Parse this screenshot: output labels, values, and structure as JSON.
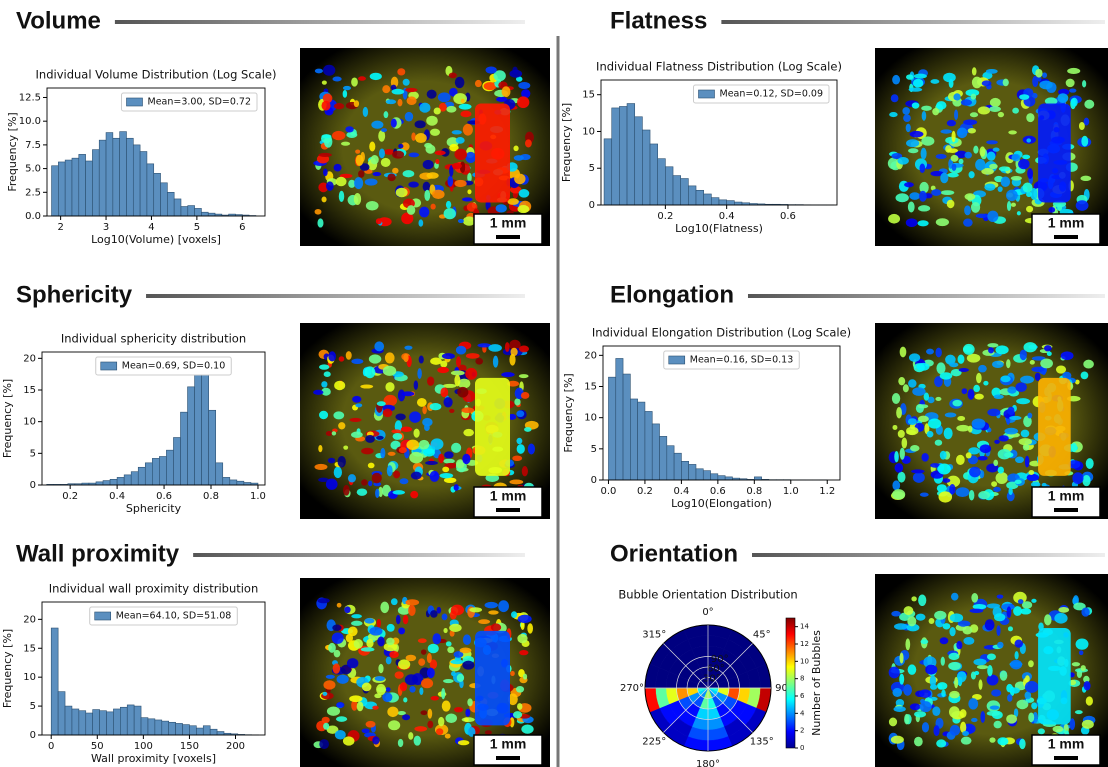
{
  "sections": [
    {
      "heading": "Volume",
      "scale_bar": "1 mm"
    },
    {
      "heading": "Flatness",
      "scale_bar": "1 mm"
    },
    {
      "heading": "Sphericity",
      "scale_bar": "1 mm"
    },
    {
      "heading": "Elongation",
      "scale_bar": "1 mm"
    },
    {
      "heading": "Wall proximity",
      "scale_bar": "1 mm"
    },
    {
      "heading": "Orientation",
      "scale_bar": "1 mm"
    }
  ],
  "chart_data": [
    {
      "type": "histogram",
      "title": "Individual Volume Distribution (Log Scale)",
      "x_label": "Log10(Volume) [voxels]",
      "y_label": "Frequency [%]",
      "bins": [
        1.8,
        1.95,
        2.1,
        2.25,
        2.4,
        2.55,
        2.7,
        2.85,
        3.0,
        3.15,
        3.3,
        3.45,
        3.6,
        3.75,
        3.9,
        4.05,
        4.2,
        4.35,
        4.5,
        4.65,
        4.8,
        4.95,
        5.1,
        5.25,
        5.4,
        5.55,
        5.7,
        5.85,
        6.0,
        6.15,
        6.3
      ],
      "series": [
        {
          "name": "Mean=3.00, SD=0.72",
          "color": "#5b8fbf",
          "values": [
            5.3,
            5.7,
            5.9,
            6.1,
            6.5,
            5.8,
            7.0,
            8.0,
            8.8,
            8.2,
            8.9,
            8.2,
            7.5,
            6.8,
            5.5,
            4.5,
            3.5,
            2.5,
            1.8,
            1.0,
            1.1,
            0.8,
            0.4,
            0.3,
            0.2,
            0.1,
            0.2,
            0.15,
            0.1,
            0.05
          ]
        }
      ],
      "xlim": [
        1.7,
        6.5
      ],
      "xticks": [
        2,
        3,
        4,
        5,
        6
      ],
      "ylim": [
        0,
        13.5
      ],
      "yticks": [
        {
          "value": 0,
          "label": "0.0"
        },
        2.5,
        {
          "value": 5,
          "label": "5.0"
        },
        7.5,
        {
          "value": 10,
          "label": "10.0"
        },
        12.5
      ],
      "legend": "upper right"
    },
    {
      "type": "histogram",
      "title": "Individual Flatness Distribution (Log Scale)",
      "x_label": "Log10(Flatness)",
      "y_label": "Frequency [%]",
      "bins": [
        0,
        0.025,
        0.05,
        0.075,
        0.1,
        0.125,
        0.15,
        0.175,
        0.2,
        0.225,
        0.25,
        0.275,
        0.3,
        0.325,
        0.35,
        0.375,
        0.4,
        0.425,
        0.45,
        0.475,
        0.5,
        0.525,
        0.55,
        0.575,
        0.6,
        0.625,
        0.65,
        0.675,
        0.7,
        0.725,
        0.75
      ],
      "series": [
        {
          "name": "Mean=0.12, SD=0.09",
          "color": "#5b8fbf",
          "values": [
            9,
            13.2,
            13.4,
            13.8,
            12,
            10.2,
            8.3,
            6.3,
            5.2,
            4.0,
            3.6,
            2.6,
            2.0,
            1.5,
            1.0,
            0.7,
            0.6,
            0.4,
            0.3,
            0.2,
            0.15,
            0.1,
            0.1,
            0.08,
            0.05,
            0.05,
            0.03,
            0.02,
            0.02,
            0.01
          ]
        }
      ],
      "xlim": [
        -0.01,
        0.76
      ],
      "xticks": [
        0.2,
        0.4,
        0.6
      ],
      "ylim": [
        0,
        17
      ],
      "yticks": [
        0,
        5,
        10,
        15
      ],
      "legend": "upper right"
    },
    {
      "type": "histogram",
      "title": "Individual sphericity distribution",
      "x_label": "Sphericity",
      "y_label": "Frequency [%]",
      "bins": [
        0.1,
        0.13,
        0.16,
        0.19,
        0.22,
        0.25,
        0.28,
        0.31,
        0.34,
        0.37,
        0.4,
        0.43,
        0.46,
        0.49,
        0.52,
        0.55,
        0.58,
        0.61,
        0.64,
        0.67,
        0.7,
        0.73,
        0.76,
        0.79,
        0.82,
        0.85,
        0.88,
        0.91,
        0.94,
        0.97,
        1.0
      ],
      "series": [
        {
          "name": "Mean=0.69, SD=0.10",
          "color": "#5b8fbf",
          "values": [
            0.1,
            0.1,
            0.1,
            0.2,
            0.2,
            0.3,
            0.3,
            0.5,
            0.7,
            0.9,
            1.2,
            1.6,
            2.1,
            2.8,
            3.5,
            4.2,
            4.5,
            5.5,
            7.5,
            11.5,
            15.5,
            19.2,
            19.6,
            11.8,
            3.5,
            1.2,
            0.8,
            0.6,
            0.4,
            0.3
          ]
        }
      ],
      "xlim": [
        0.08,
        1.03
      ],
      "xticks": [
        0.2,
        0.4,
        0.6,
        0.8,
        {
          "value": 1,
          "label": "1.0"
        }
      ],
      "ylim": [
        0,
        21
      ],
      "yticks": [
        0,
        5,
        10,
        15,
        20
      ],
      "legend": "upper center"
    },
    {
      "type": "histogram",
      "title": "Individual Elongation Distribution (Log Scale)",
      "x_label": "Log10(Elongation)",
      "y_label": "Frequency [%]",
      "bins": [
        0,
        0.04,
        0.08,
        0.12,
        0.16,
        0.2,
        0.24,
        0.28,
        0.32,
        0.36,
        0.4,
        0.44,
        0.48,
        0.52,
        0.56,
        0.6,
        0.64,
        0.68,
        0.72,
        0.76,
        0.8,
        0.84,
        0.88,
        0.92,
        0.96,
        1.0,
        1.04,
        1.08,
        1.12,
        1.16,
        1.2
      ],
      "series": [
        {
          "name": "Mean=0.16, SD=0.13",
          "color": "#5b8fbf",
          "values": [
            16.5,
            19.5,
            17,
            13,
            12.5,
            11,
            9,
            7,
            5.5,
            4.3,
            3,
            2.5,
            1.8,
            1.5,
            1,
            0.7,
            0.5,
            0.3,
            0.2,
            0.1,
            0.5,
            0.1,
            0.05,
            0.05,
            0.05,
            0.02,
            0.02,
            0.01,
            0.01,
            0.02
          ]
        }
      ],
      "xlim": [
        -0.03,
        1.27
      ],
      "xticks": [
        {
          "value": 0,
          "label": "0.0"
        },
        0.2,
        0.4,
        0.6,
        0.8,
        {
          "value": 1,
          "label": "1.0"
        },
        1.2
      ],
      "ylim": [
        0,
        21.5
      ],
      "yticks": [
        0,
        5,
        10,
        15,
        20
      ],
      "legend": "upper center"
    },
    {
      "type": "histogram",
      "title": "Individual wall proximity distribution",
      "x_label": "Wall proximity [voxels]",
      "y_label": "Frequency [%]",
      "bins": [
        0,
        7.5,
        15,
        22.5,
        30,
        37.5,
        45,
        52.5,
        60,
        67.5,
        75,
        82.5,
        90,
        97.5,
        105,
        112.5,
        120,
        127.5,
        135,
        142.5,
        150,
        157.5,
        165,
        172.5,
        180,
        187.5,
        195,
        202.5,
        210,
        217.5,
        225
      ],
      "series": [
        {
          "name": "Mean=64.10, SD=51.08",
          "color": "#5b8fbf",
          "values": [
            18.5,
            7.5,
            5,
            4.5,
            4.2,
            3.8,
            4.4,
            4.2,
            4,
            4.5,
            4.8,
            5.2,
            5,
            3,
            2.8,
            2.6,
            2.4,
            2.2,
            2,
            1.8,
            1.6,
            1.2,
            1.6,
            1,
            0.6,
            0.3,
            0.2,
            0.1,
            0.05,
            0.03
          ]
        }
      ],
      "xlim": [
        -10,
        232
      ],
      "xticks": [
        0,
        50,
        100,
        150,
        200
      ],
      "ylim": [
        0,
        23
      ],
      "yticks": [
        0,
        5,
        10,
        15,
        20
      ],
      "legend": "upper center"
    },
    {
      "type": "polar",
      "title": "Bubble Orientation Distribution",
      "colorbar_label": "Number of Bubbles",
      "theta_ticks": [
        {
          "value": 0,
          "label": "0°"
        },
        {
          "value": 45,
          "label": "45°"
        },
        {
          "value": 90,
          "label": "90°"
        },
        {
          "value": 135,
          "label": "135°"
        },
        {
          "value": 180,
          "label": "180°"
        },
        {
          "value": 225,
          "label": "225°"
        },
        {
          "value": 270,
          "label": "270°"
        },
        {
          "value": 315,
          "label": "315°"
        }
      ],
      "rlim": [
        0,
        180
      ],
      "rticks": [
        {
          "value": 30,
          "label": "30°"
        },
        {
          "value": 60,
          "label": "60°"
        },
        {
          "value": 90,
          "label": "90°"
        }
      ],
      "theta_edges": [
        0,
        22.5,
        45,
        67.5,
        90,
        112.5,
        135,
        157.5,
        180,
        202.5,
        225,
        247.5,
        270,
        292.5,
        315,
        337.5,
        360
      ],
      "r_edges": [
        0,
        30,
        60,
        90,
        120,
        150,
        180
      ],
      "counts": [
        [
          0,
          0,
          0,
          0,
          6,
          5,
          4,
          8,
          8,
          4,
          5,
          6,
          0,
          0,
          0,
          0
        ],
        [
          0,
          0,
          0,
          0,
          9,
          4,
          3,
          6,
          7,
          3,
          4,
          10,
          0,
          0,
          0,
          0
        ],
        [
          0,
          0,
          0,
          0,
          12,
          3,
          2,
          5,
          5,
          2,
          3,
          11,
          0,
          0,
          0,
          0
        ],
        [
          0,
          0,
          0,
          0,
          10,
          2,
          2,
          4,
          4,
          2,
          2,
          9,
          0,
          0,
          0,
          0
        ],
        [
          0,
          0,
          0,
          0,
          8,
          2,
          1,
          3,
          3,
          1,
          2,
          7,
          0,
          0,
          0,
          0
        ],
        [
          0,
          0,
          0,
          0,
          14,
          1,
          1,
          2,
          2,
          1,
          1,
          13,
          0,
          0,
          0,
          0
        ]
      ],
      "clim": [
        0,
        15
      ],
      "cticks": [
        0,
        2,
        4,
        6,
        8,
        10,
        12,
        14
      ],
      "colormap": "jet"
    }
  ]
}
